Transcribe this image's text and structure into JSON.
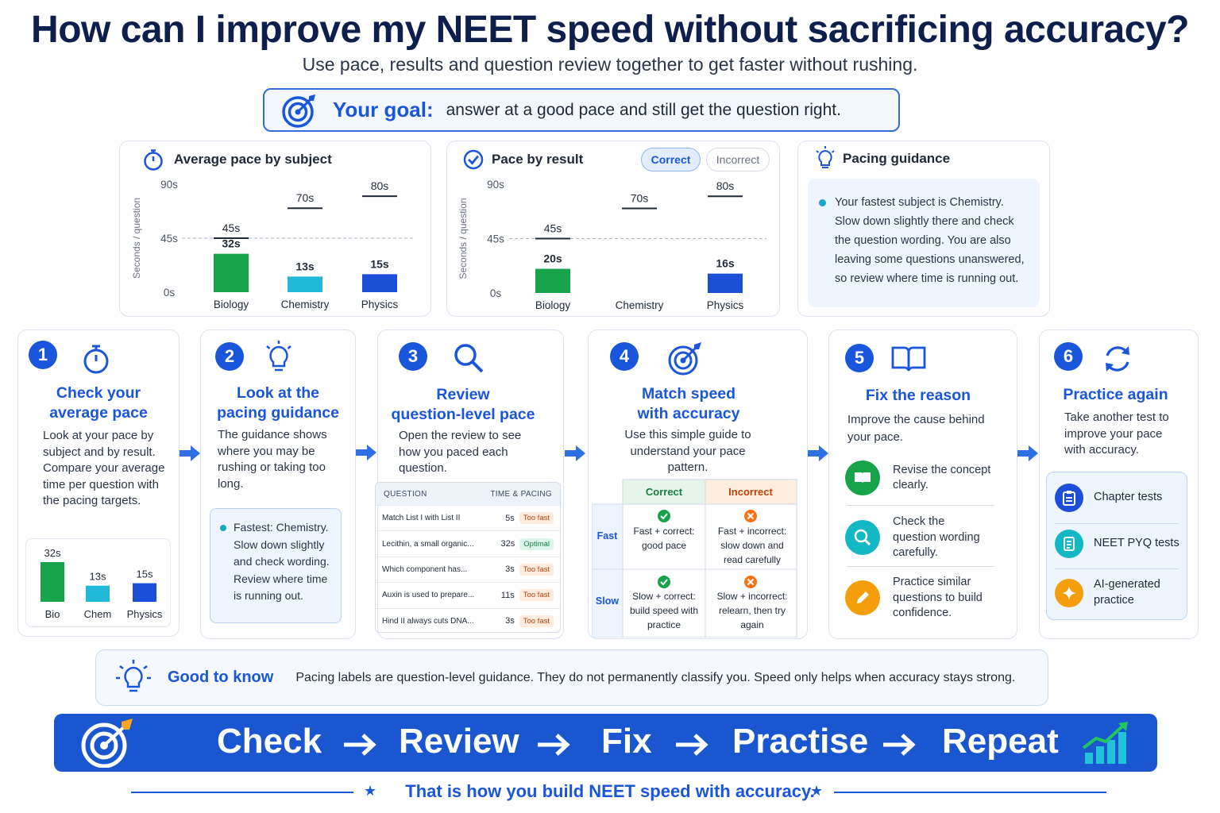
{
  "title": "How can I improve my NEET speed without sacrificing accuracy?",
  "subtitle": "Use pace, results and question review together to get faster without rushing.",
  "goal": {
    "label": "Your goal:",
    "text": "answer at a good pace and still get the question right."
  },
  "avg_pace": {
    "title": "Average pace by subject",
    "ylabel": "Seconds / question",
    "ticks": [
      "90s",
      "45s",
      "0s"
    ],
    "subjects": [
      {
        "name": "Biology",
        "value": 32,
        "value_label": "32s",
        "target": 45,
        "target_label": "45s",
        "color": "#16a34a"
      },
      {
        "name": "Chemistry",
        "value": 13,
        "value_label": "13s",
        "target": 70,
        "target_label": "70s",
        "color": "#22b8d8"
      },
      {
        "name": "Physics",
        "value": 15,
        "value_label": "15s",
        "target": 80,
        "target_label": "80s",
        "color": "#1d4ed8"
      }
    ]
  },
  "result_pace": {
    "title": "Pace by result",
    "tab_correct": "Correct",
    "tab_incorrect": "Incorrect",
    "ylabel": "Seconds / question",
    "ticks": [
      "90s",
      "45s",
      "0s"
    ],
    "subjects": [
      {
        "name": "Biology",
        "value": 20,
        "value_label": "20s",
        "target": 45,
        "target_label": "45s",
        "color": "#16a34a"
      },
      {
        "name": "Chemistry",
        "value": null,
        "value_label": "",
        "target": 70,
        "target_label": "70s",
        "color": "#22b8d8"
      },
      {
        "name": "Physics",
        "value": 16,
        "value_label": "16s",
        "target": 80,
        "target_label": "80s",
        "color": "#1d4ed8"
      }
    ]
  },
  "guidance": {
    "title": "Pacing guidance",
    "text": "Your fastest subject is Chemistry. Slow down slightly there and check the question wording. You are also leaving some questions unanswered, so review where time is running out."
  },
  "steps": [
    {
      "num": "1",
      "title_a": "Check your",
      "title_b": "average pace",
      "text": "Look at your pace by subject and by result. Compare your average time per question with the pacing targets."
    },
    {
      "num": "2",
      "title_a": "Look at the",
      "title_b": "pacing guidance",
      "text": "The guidance shows where you may be rushing or taking too long."
    },
    {
      "num": "3",
      "title_a": "Review",
      "title_b": "question-level pace",
      "text": "Open the review to see how you paced each question."
    },
    {
      "num": "4",
      "title_a": "Match speed",
      "title_b": "with accuracy",
      "text": "Use this simple guide to understand your pace pattern."
    },
    {
      "num": "5",
      "title_a": "Fix the reason",
      "title_b": "",
      "text": "Improve the cause behind your pace."
    },
    {
      "num": "6",
      "title_a": "Practice again",
      "title_b": "",
      "text": "Take another test to improve your pace with accuracy."
    }
  ],
  "mini_chart": {
    "bars": [
      {
        "label": "Bio",
        "value": 32,
        "value_label": "32s",
        "color": "#16a34a"
      },
      {
        "label": "Chem",
        "value": 13,
        "value_label": "13s",
        "color": "#22b8d8"
      },
      {
        "label": "Physics",
        "value": 15,
        "value_label": "15s",
        "color": "#1d4ed8"
      }
    ]
  },
  "step2_note": "Fastest: Chemistry. Slow down slightly and check wording. Review where time is running out.",
  "question_table": {
    "col_question": "QUESTION",
    "col_time": "TIME & PACING",
    "rows": [
      {
        "q": "Match List I with List II",
        "t": "5s",
        "badge": "Too fast",
        "kind": "fast"
      },
      {
        "q": "Lecithin, a small organic...",
        "t": "32s",
        "badge": "Optimal",
        "kind": "opt"
      },
      {
        "q": "Which component has...",
        "t": "3s",
        "badge": "Too fast",
        "kind": "fast"
      },
      {
        "q": "Auxin is used to prepare...",
        "t": "11s",
        "badge": "Too fast",
        "kind": "fast"
      },
      {
        "q": "Hind II always cuts DNA...",
        "t": "3s",
        "badge": "Too fast",
        "kind": "fast"
      }
    ]
  },
  "matrix": {
    "col_correct": "Correct",
    "col_incorrect": "Incorrect",
    "row_fast": "Fast",
    "row_slow": "Slow",
    "fast_correct": "Fast + correct: good pace",
    "fast_incorrect": "Fast + incorrect: slow down and read carefully",
    "slow_correct": "Slow + correct: build speed with practice",
    "slow_incorrect": "Slow + incorrect: relearn, then try again"
  },
  "fix_items": [
    {
      "text": "Revise the concept clearly.",
      "icon": "book-icon",
      "color": "#16a34a"
    },
    {
      "text": "Check the question wording carefully.",
      "icon": "search-icon",
      "color": "#14b8c4"
    },
    {
      "text": "Practice similar questions to build confidence.",
      "icon": "pencil-icon",
      "color": "#f59e0b"
    }
  ],
  "practice_items": [
    {
      "text": "Chapter tests",
      "icon": "clipboard-icon",
      "color": "#1d4ed8"
    },
    {
      "text": "NEET PYQ tests",
      "icon": "document-icon",
      "color": "#14b8c4"
    },
    {
      "text": "AI-generated practice",
      "icon": "sparkle-icon",
      "color": "#f59e0b"
    }
  ],
  "good_to_know": {
    "label": "Good to know",
    "text": "Pacing labels are question-level guidance. They do not permanently classify you. Speed only helps when accuracy stays strong."
  },
  "banner": {
    "words": [
      "Check",
      "Review",
      "Fix",
      "Practise",
      "Repeat"
    ]
  },
  "footer": "That is how you build NEET speed with accuracy.",
  "colors": {
    "accent": "#1a56db",
    "green": "#16a34a",
    "teal": "#22b8d8",
    "blue": "#1d4ed8",
    "orange": "#f59e0b"
  }
}
